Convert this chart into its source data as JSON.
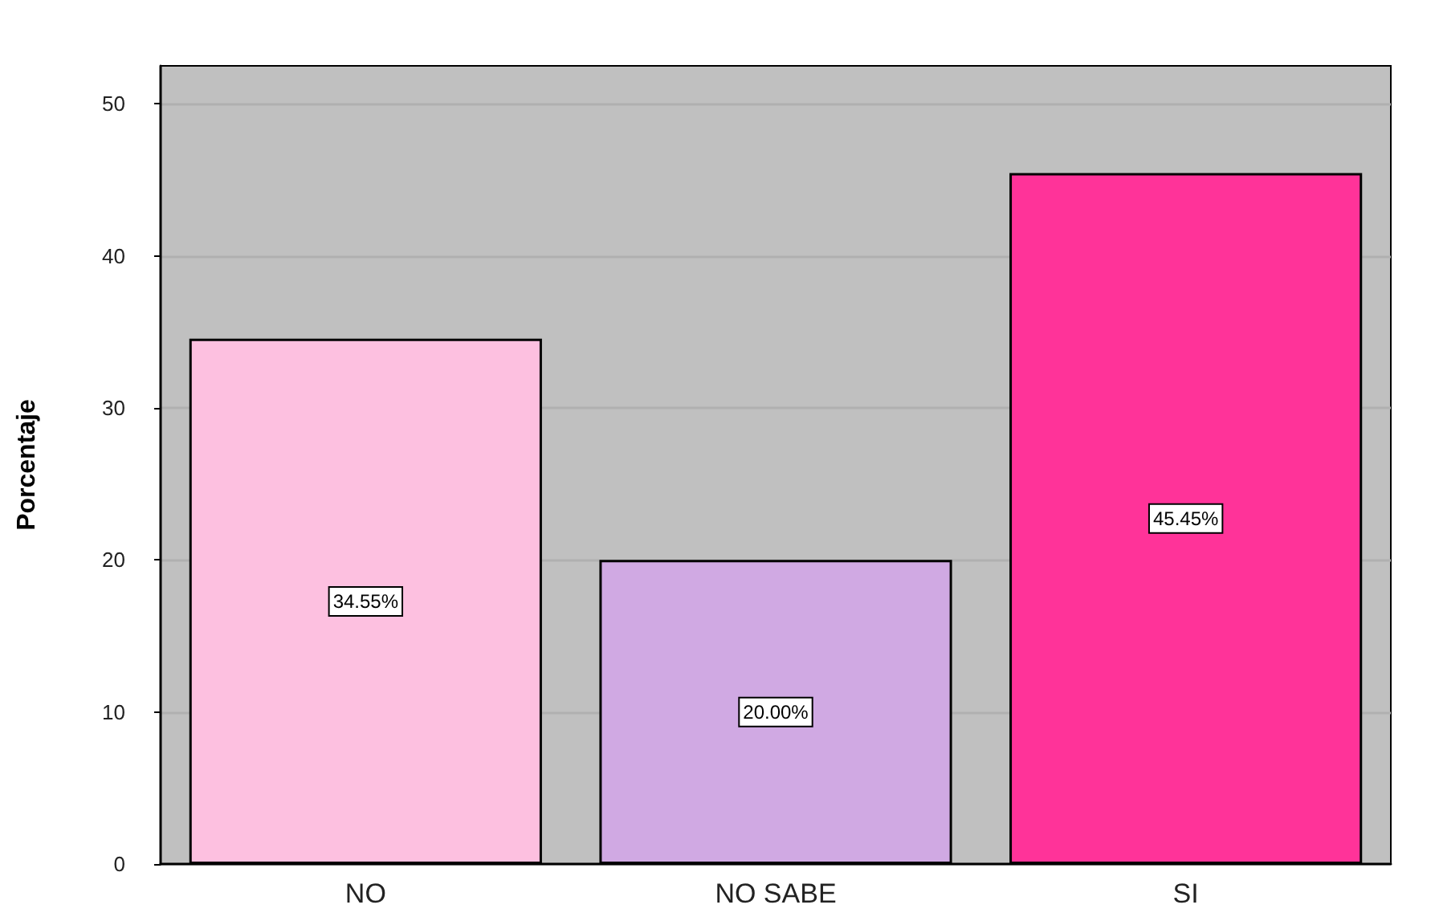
{
  "chart_data": {
    "type": "bar",
    "ylabel": "Porcentaje",
    "categories": [
      "NO",
      "NO SABE",
      "SI"
    ],
    "values": [
      34.55,
      20.0,
      45.45
    ],
    "colors": [
      "#fdc0e0",
      "#d0a9e3",
      "#ff3399"
    ],
    "value_labels": [
      "34.55%",
      "20.00%",
      "45.45%"
    ],
    "ylim": [
      0,
      52.5
    ],
    "yticks": [
      0,
      10,
      20,
      30,
      40,
      50
    ],
    "grid": "y"
  }
}
